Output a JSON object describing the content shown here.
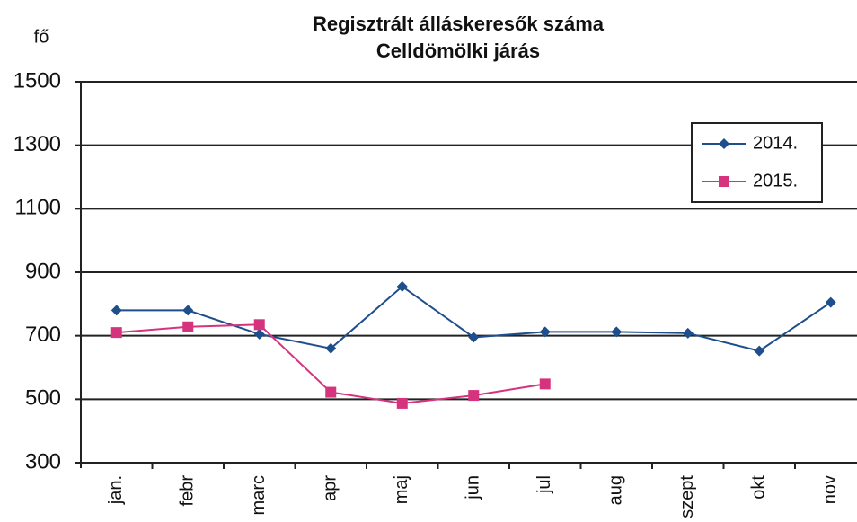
{
  "chart_data": {
    "type": "line",
    "title": [
      "Regisztrált álláskeresők száma",
      "Celldömölki járás"
    ],
    "y_label": "fő",
    "categories": [
      "jan.",
      "febr",
      "marc",
      "apr",
      "maj",
      "jun",
      "jul",
      "aug",
      "szept",
      "okt",
      "nov"
    ],
    "series": [
      {
        "name": "2014.",
        "color": "#1f4e8c",
        "marker": "diamond",
        "values": [
          780,
          780,
          705,
          660,
          855,
          695,
          712,
          712,
          708,
          652,
          805
        ]
      },
      {
        "name": "2015.",
        "color": "#d6337f",
        "marker": "square",
        "values": [
          710,
          728,
          735,
          522,
          487,
          512,
          548,
          null,
          null,
          null,
          null
        ]
      }
    ],
    "ylim": [
      300,
      1500
    ],
    "yticks": [
      300,
      500,
      700,
      900,
      1100,
      1300,
      1500
    ],
    "grid": true,
    "legend": "upper right"
  }
}
